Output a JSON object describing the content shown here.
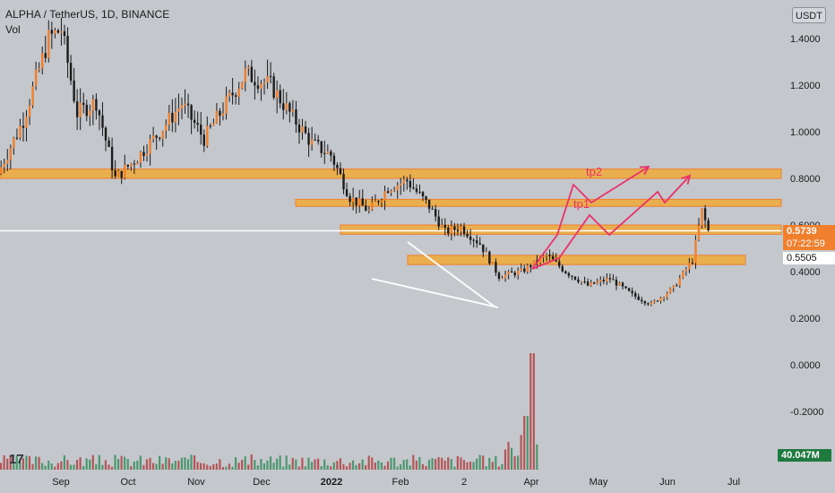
{
  "header": {
    "title": "ALPHA / TetherUS, 1D, BINANCE",
    "indicator": "Vol"
  },
  "currency_button": "USDT",
  "price_tag": "0.5739",
  "timer_tag": "07:22:59",
  "level_tag": "0.5505",
  "volume_tag": "40.047M",
  "colors": {
    "background": "#c4c7cc",
    "zone_fill": "#f5a623",
    "zone_border": "#f07f2e",
    "candle": "#1b1b1b",
    "candle_up": "#f07f2e",
    "projection": "#e8336a",
    "trendline": "#ffffff",
    "volume_up": "#2e8b57",
    "volume_down": "#b03a3a"
  },
  "chart_data": {
    "type": "candlestick",
    "title": "ALPHA / TetherUS, 1D, BINANCE",
    "y_axis_labels": [
      "1.4000",
      "1.2000",
      "1.0000",
      "0.8000",
      "0.6000",
      "0.4000",
      "0.2000",
      "0.0000",
      "-0.2000"
    ],
    "ylim": [
      -0.27,
      1.55
    ],
    "x_axis_labels": [
      "Sep",
      "Oct",
      "Nov",
      "Dec",
      "2022",
      "Feb",
      "2",
      "Apr",
      "May",
      "Jun",
      "Jul"
    ],
    "price_path": [
      [
        "2021-08-20",
        0.82
      ],
      [
        "2021-08-28",
        1.05
      ],
      [
        "2021-09-05",
        1.4
      ],
      [
        "2021-09-09",
        1.44
      ],
      [
        "2021-09-14",
        1.08
      ],
      [
        "2021-09-20",
        1.13
      ],
      [
        "2021-09-26",
        0.8
      ],
      [
        "2021-10-03",
        0.89
      ],
      [
        "2021-10-10",
        1.0
      ],
      [
        "2021-10-17",
        1.12
      ],
      [
        "2021-10-24",
        0.97
      ],
      [
        "2021-10-31",
        1.12
      ],
      [
        "2021-11-06",
        1.25
      ],
      [
        "2021-11-14",
        1.2
      ],
      [
        "2021-11-20",
        1.08
      ],
      [
        "2021-11-27",
        0.95
      ],
      [
        "2021-12-03",
        0.9
      ],
      [
        "2021-12-09",
        0.72
      ],
      [
        "2021-12-15",
        0.66
      ],
      [
        "2021-12-21",
        0.76
      ],
      [
        "2021-12-27",
        0.79
      ],
      [
        "2022-01-03",
        0.68
      ],
      [
        "2022-01-08",
        0.57
      ],
      [
        "2022-01-13",
        0.59
      ],
      [
        "2022-01-19",
        0.52
      ],
      [
        "2022-01-25",
        0.38
      ],
      [
        "2022-02-01",
        0.4
      ],
      [
        "2022-02-09",
        0.47
      ],
      [
        "2022-02-15",
        0.4
      ],
      [
        "2022-02-22",
        0.34
      ],
      [
        "2022-03-01",
        0.37
      ],
      [
        "2022-03-08",
        0.3
      ],
      [
        "2022-03-14",
        0.26
      ],
      [
        "2022-03-21",
        0.33
      ],
      [
        "2022-03-27",
        0.45
      ],
      [
        "2022-03-30",
        0.66
      ],
      [
        "2022-04-01",
        0.574
      ]
    ],
    "zones": [
      {
        "from": 0.8,
        "to": 0.84
      },
      {
        "from": 0.68,
        "to": 0.71
      },
      {
        "from": 0.56,
        "to": 0.6
      },
      {
        "from": 0.43,
        "to": 0.47
      }
    ],
    "horizontal_line": 0.575,
    "current_price": 0.5739,
    "projection_labels": [
      "tp1",
      "tp2"
    ],
    "volume": {
      "last": "40.047M"
    },
    "grid": false,
    "legend": "none"
  }
}
